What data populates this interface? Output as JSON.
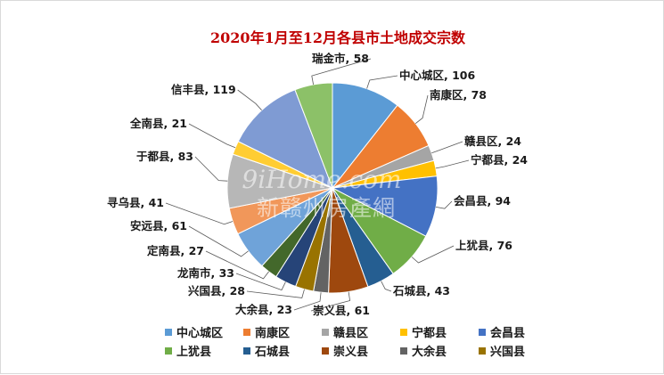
{
  "chart_data": {
    "type": "pie",
    "title": "2020年1月至12月各县市土地成交宗数",
    "categories": [
      "中心城区",
      "南康区",
      "赣县区",
      "宁都县",
      "会昌县",
      "上犹县",
      "石城县",
      "崇义县",
      "大余县",
      "兴国县",
      "龙南市",
      "定南县",
      "安远县",
      "寻乌县",
      "于都县",
      "全南县",
      "信丰县",
      "瑞金市"
    ],
    "values": [
      106,
      78,
      24,
      24,
      94,
      76,
      43,
      61,
      23,
      28,
      33,
      27,
      61,
      41,
      83,
      21,
      119,
      58
    ],
    "colors": [
      "#5b9bd5",
      "#ed7d31",
      "#a5a5a5",
      "#ffc000",
      "#4472c4",
      "#70ad47",
      "#255e91",
      "#9e480e",
      "#636363",
      "#997300",
      "#264478",
      "#43682b",
      "#6fa3d9",
      "#f1975a",
      "#b7b7b7",
      "#ffcd33",
      "#7f9bd3",
      "#8cc168"
    ],
    "labels": [
      "中心城区, 106",
      "南康区, 78",
      "赣县区, 24",
      "宁都县, 24",
      "会昌县, 94",
      "上犹县, 76",
      "石城县, 43",
      "崇义县, 61",
      "大余县, 23",
      "兴国县, 28",
      "龙南市, 33",
      "定南县, 27",
      "安远县, 61",
      "寻乌县, 41",
      "于都县, 83",
      "全南县, 21",
      "信丰县, 119",
      "瑞金市, 58"
    ],
    "legend_items": [
      "中心城区",
      "南康区",
      "赣县区",
      "宁都县",
      "会昌县",
      "上犹县",
      "石城县",
      "崇义县",
      "大余县",
      "兴国县"
    ],
    "legend_position": "bottom",
    "start": "clockwise from 12 o'clock"
  },
  "watermark": {
    "line1": "9iHome.com",
    "line2": "新赣州房產網"
  }
}
